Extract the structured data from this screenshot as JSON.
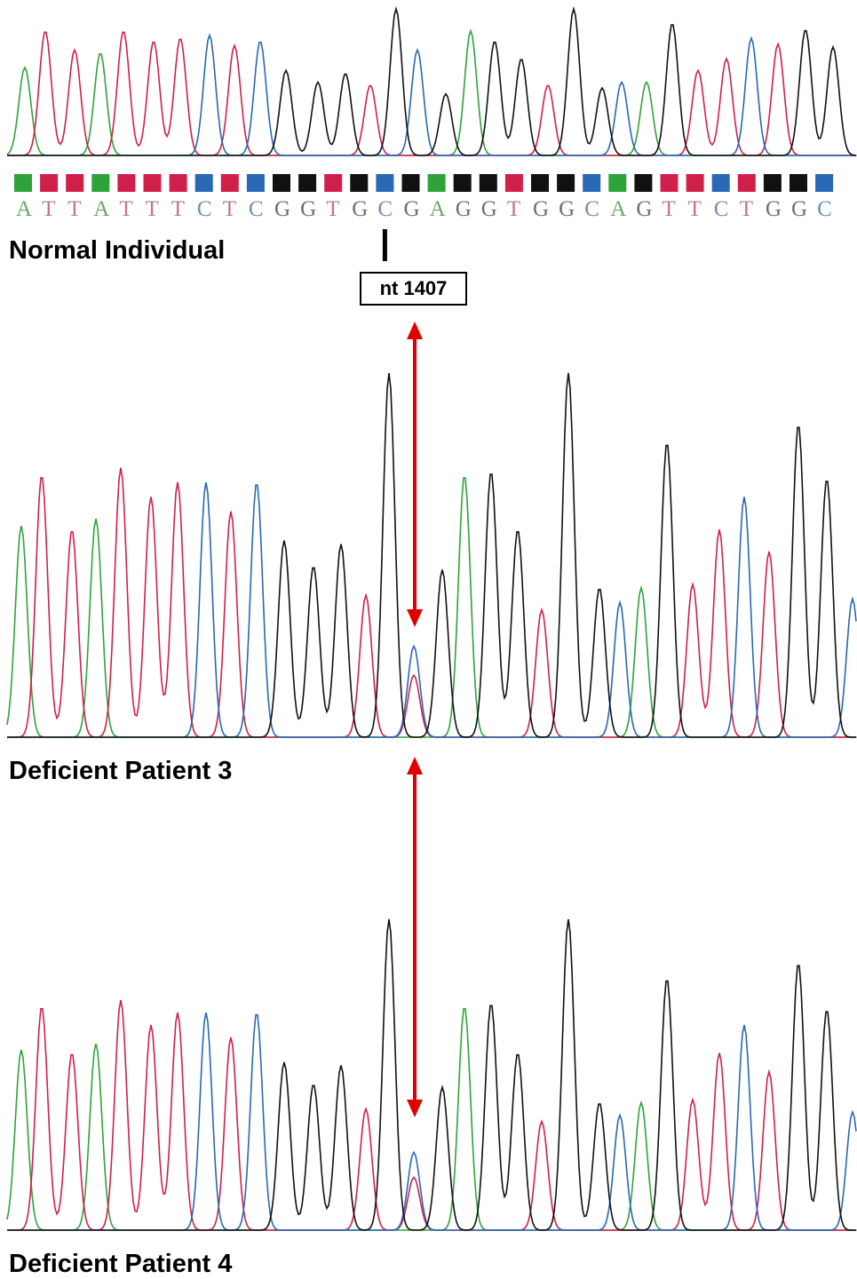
{
  "labels": {
    "normal": "Normal Individual",
    "patient3": "Deficient Patient 3",
    "patient4": "Deficient Patient 4",
    "position": "nt 1407"
  },
  "colors": {
    "A": "#2ea33a",
    "T": "#d0204a",
    "C": "#2868b4",
    "G": "#111111",
    "arrow": "#e00000"
  },
  "normal_sequence": "ATTATTTCTCGGTGCGAGGTGGCAGTTCTGGC",
  "marker_index": 14
}
